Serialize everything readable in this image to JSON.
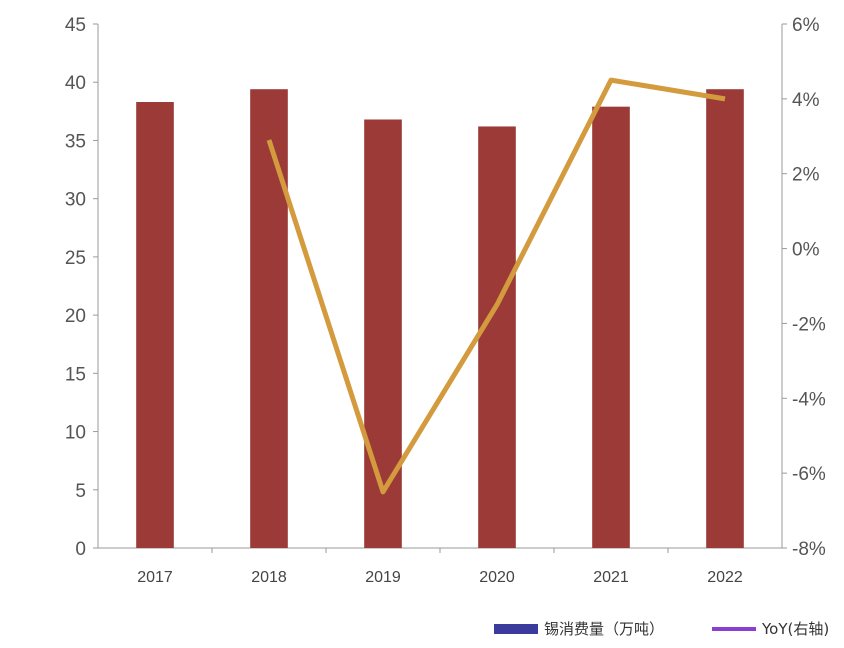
{
  "chart_data": {
    "type": "bar",
    "categories": [
      "2017",
      "2018",
      "2019",
      "2020",
      "2021",
      "2022"
    ],
    "series": [
      {
        "name": "锡消费量（万吨）",
        "type": "bar",
        "axis": "left",
        "color": "#9b3a36",
        "values": [
          38.3,
          39.4,
          36.8,
          36.2,
          37.9,
          39.4
        ]
      },
      {
        "name": "YoY(右轴)",
        "type": "line",
        "axis": "right",
        "color": "#d39a3e",
        "values": [
          null,
          2.9,
          -6.5,
          -1.5,
          4.5,
          4.0
        ]
      }
    ],
    "left_axis": {
      "ylim": [
        0,
        45
      ],
      "ticks": [
        "0",
        "5",
        "10",
        "15",
        "20",
        "25",
        "30",
        "35",
        "40",
        "45"
      ]
    },
    "right_axis": {
      "ylim": [
        -8,
        6
      ],
      "ticks": [
        "-8%",
        "-6%",
        "-4%",
        "-2%",
        "0%",
        "2%",
        "4%",
        "6%"
      ]
    },
    "legend": {
      "position": "bottom-right",
      "swatch_colors": [
        "#3b3b9b",
        "#8b3fd0"
      ]
    },
    "grid": false
  }
}
